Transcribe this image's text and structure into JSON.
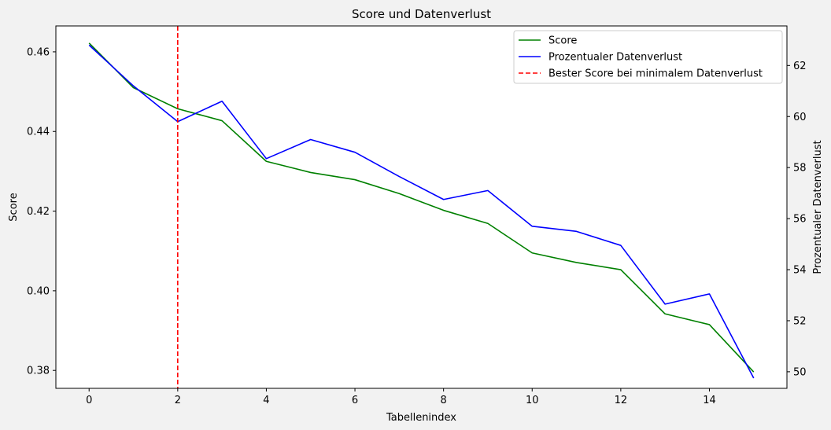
{
  "chart_data": {
    "type": "line",
    "title": "Score und Datenverlust",
    "xlabel": "Tabellenindex",
    "ylabel_left": "Score",
    "ylabel_right": "Prozentualer Datenverlust",
    "x": [
      0,
      1,
      2,
      3,
      4,
      5,
      6,
      7,
      8,
      9,
      10,
      11,
      12,
      13,
      14,
      15
    ],
    "xlim": [
      -0.75,
      15.75
    ],
    "xticks": [
      0,
      2,
      4,
      6,
      8,
      10,
      12,
      14
    ],
    "ylim_left": [
      0.3755,
      0.4665
    ],
    "yticks_left": [
      0.38,
      0.4,
      0.42,
      0.44,
      0.46
    ],
    "ytick_labels_left": [
      "0.38",
      "0.40",
      "0.42",
      "0.44",
      "0.46"
    ],
    "ylim_right": [
      49.35,
      63.55
    ],
    "yticks_right": [
      50,
      52,
      54,
      56,
      58,
      60,
      62
    ],
    "series": [
      {
        "name": "Score",
        "axis": "left",
        "color": "#008000",
        "dash": "solid",
        "values": [
          0.4622,
          0.451,
          0.4457,
          0.4427,
          0.4325,
          0.4297,
          0.4279,
          0.4244,
          0.4202,
          0.4169,
          0.4095,
          0.4071,
          0.4053,
          0.3942,
          0.3915,
          0.3796
        ]
      },
      {
        "name": "Prozentualer Datenverlust",
        "axis": "right",
        "color": "#0000ff",
        "dash": "solid",
        "values": [
          62.8,
          61.2,
          59.8,
          60.6,
          58.35,
          59.1,
          58.6,
          57.65,
          56.75,
          57.1,
          55.7,
          55.5,
          54.95,
          52.65,
          53.05,
          49.75
        ]
      }
    ],
    "vline": {
      "name": "Bester Score bei minimalem Datenverlust",
      "x": 2,
      "color": "#ff0000",
      "dash": "dashed"
    },
    "legend_position": "top-right",
    "grid": false
  }
}
